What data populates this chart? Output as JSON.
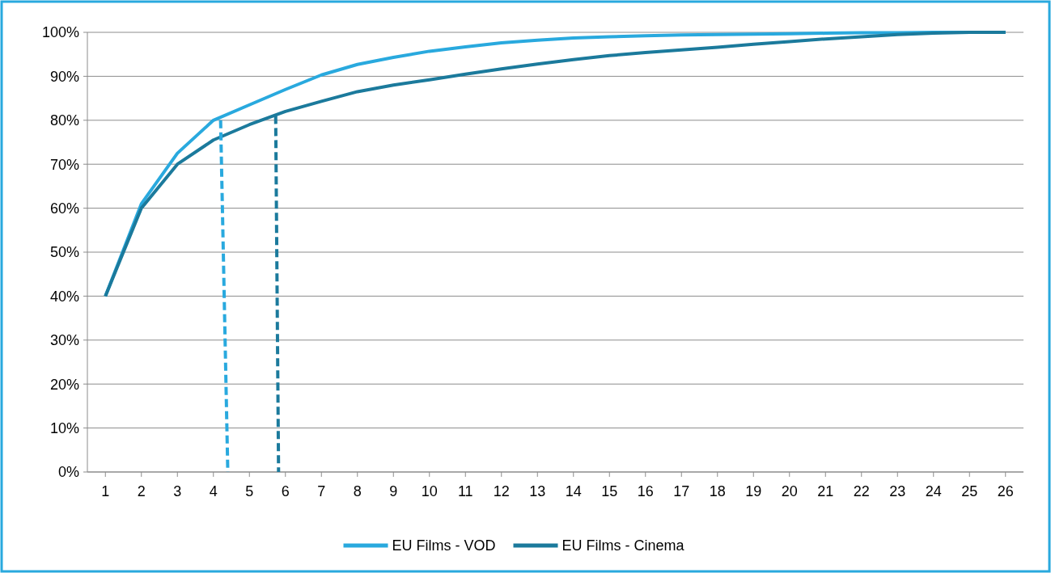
{
  "chart_data": {
    "type": "line",
    "x": [
      1,
      2,
      3,
      4,
      5,
      6,
      7,
      8,
      9,
      10,
      11,
      12,
      13,
      14,
      15,
      16,
      17,
      18,
      19,
      20,
      21,
      22,
      23,
      24,
      25,
      26
    ],
    "xlim": [
      0.5,
      26.5
    ],
    "xticks": [
      1,
      2,
      3,
      4,
      5,
      6,
      7,
      8,
      9,
      10,
      11,
      12,
      13,
      14,
      15,
      16,
      17,
      18,
      19,
      20,
      21,
      22,
      23,
      24,
      25,
      26
    ],
    "ylim": [
      0,
      100
    ],
    "yticks": [
      {
        "value": 0,
        "label": "0%"
      },
      {
        "value": 10,
        "label": "10%"
      },
      {
        "value": 20,
        "label": "20%"
      },
      {
        "value": 30,
        "label": "30%"
      },
      {
        "value": 40,
        "label": "40%"
      },
      {
        "value": 50,
        "label": "50%"
      },
      {
        "value": 60,
        "label": "60%"
      },
      {
        "value": 70,
        "label": "70%"
      },
      {
        "value": 80,
        "label": "80%"
      },
      {
        "value": 90,
        "label": "90%"
      },
      {
        "value": 100,
        "label": "100%"
      }
    ],
    "grid": "y",
    "legend": "bottom",
    "marker": "none",
    "series": [
      {
        "name": "EU Films - VOD",
        "color": "#29a9de",
        "values": [
          40,
          61,
          72.5,
          80,
          83.5,
          87,
          90.3,
          92.7,
          94.3,
          95.7,
          96.7,
          97.6,
          98.2,
          98.7,
          99,
          99.2,
          99.4,
          99.5,
          99.6,
          99.7,
          99.8,
          99.9,
          99.9,
          100,
          100,
          100
        ]
      },
      {
        "name": "EU Films - Cinema",
        "color": "#1b7a9c",
        "values": [
          40,
          60,
          70,
          75.5,
          79,
          82,
          84.3,
          86.5,
          88,
          89.2,
          90.5,
          91.7,
          92.8,
          93.8,
          94.7,
          95.4,
          96,
          96.6,
          97.3,
          97.9,
          98.5,
          99,
          99.5,
          99.8,
          100,
          100
        ]
      },
      {
        "color": "#29a9de",
        "line_style": "dashed",
        "x": [
          4.2,
          4.4
        ],
        "values": [
          80,
          0
        ]
      },
      {
        "color": "#1b7a9c",
        "line_style": "dashed",
        "x": [
          5.73,
          5.81
        ],
        "values": [
          81,
          0
        ]
      }
    ]
  }
}
